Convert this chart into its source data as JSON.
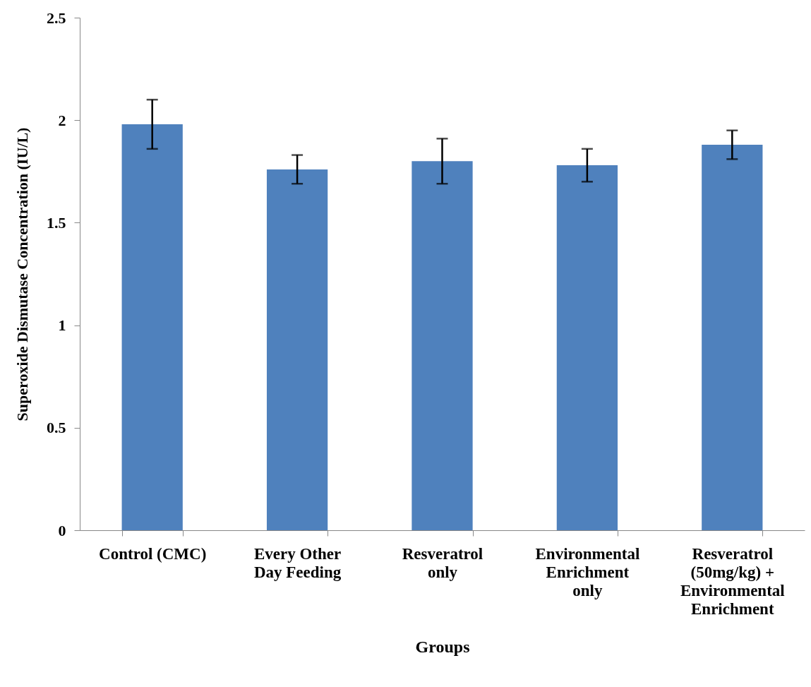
{
  "chart_data": {
    "type": "bar",
    "ylabel": "Superoxide Dismutase Concentration (IU/L)",
    "xlabel": "Groups",
    "categories": [
      "Control (CMC)",
      "Every Other Day Feeding",
      "Resveratrol only",
      "Environmental Enrichment only",
      "Resveratrol (50mg/kg) + Environmental Enrichment"
    ],
    "values": [
      1.98,
      1.76,
      1.8,
      1.78,
      1.88
    ],
    "errors": [
      0.12,
      0.07,
      0.11,
      0.08,
      0.07
    ],
    "color": "#4f81bd",
    "ylim": [
      0,
      2.5
    ],
    "yticks": [
      0,
      0.5,
      1,
      1.5,
      2,
      2.5
    ],
    "grid": false
  }
}
